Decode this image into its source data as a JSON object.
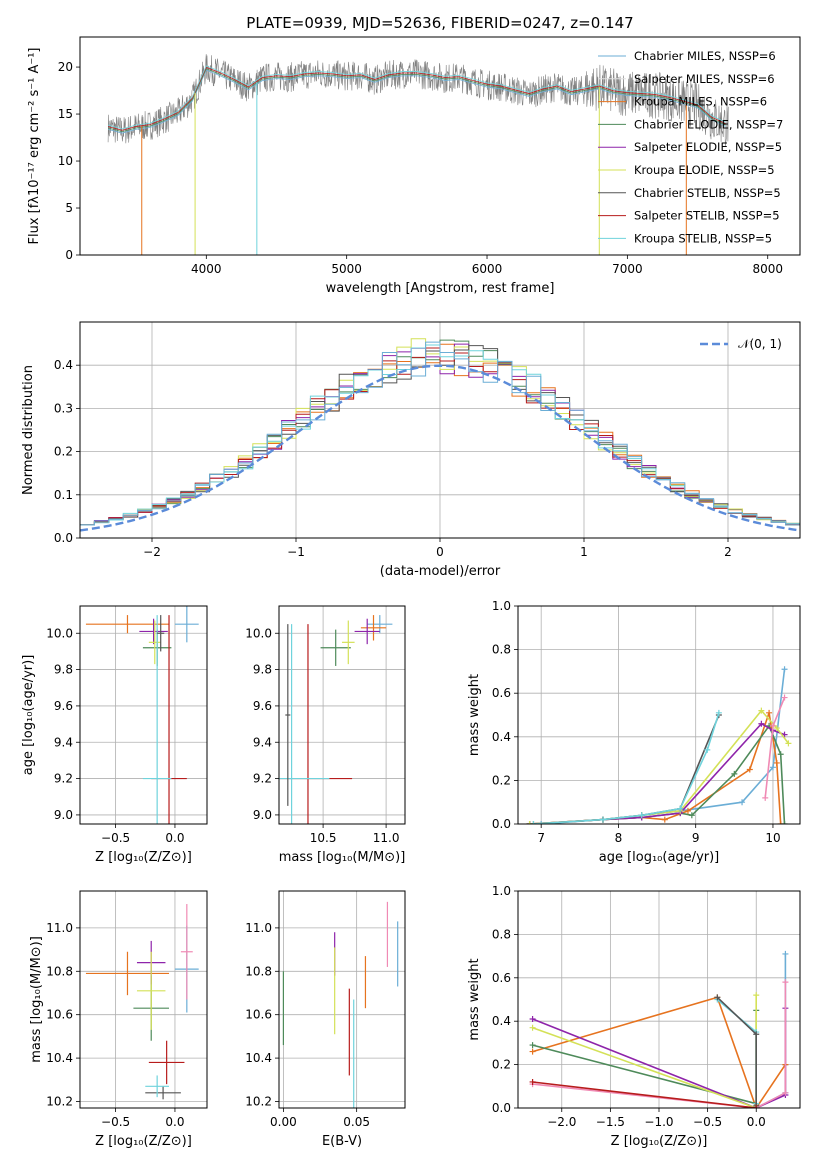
{
  "figure_title": "PLATE=0939, MJD=52636, FIBERID=0247, z=0.147",
  "series_colors": [
    "#6baed6",
    "#e0e0e0",
    "#e6731f",
    "#4e8a5a",
    "#8e24aa",
    "#d4e157",
    "#555555",
    "#b71c1c",
    "#6fd3dc"
  ],
  "chart_data": [
    {
      "type": "line",
      "xlabel": "wavelength [Angstrom, rest frame]",
      "ylabel": "Flux [fλ10⁻¹⁷ erg cm⁻² s⁻¹ A⁻¹]",
      "xlim": [
        3100,
        8230
      ],
      "ylim": [
        0,
        23.2
      ],
      "xticks": [
        "4000",
        "5000",
        "6000",
        "7000",
        "8000"
      ],
      "yticks": [
        "0",
        "5",
        "10",
        "15",
        "20"
      ],
      "legend_position": "right",
      "series": [
        {
          "name": "Chabrier MILES, NSSP=6"
        },
        {
          "name": "Salpeter MILES, NSSP=6"
        },
        {
          "name": "Kroupa MILES, NSSP=6"
        },
        {
          "name": "Chabrier ELODIE, NSSP=7"
        },
        {
          "name": "Salpeter ELODIE, NSSP=5"
        },
        {
          "name": "Kroupa ELODIE, NSSP=5"
        },
        {
          "name": "Chabrier STELIB, NSSP=5"
        },
        {
          "name": "Salpeter STELIB, NSSP=5"
        },
        {
          "name": "Kroupa STELIB, NSSP=5"
        }
      ],
      "model_spectrum": {
        "x": [
          3300,
          3400,
          3500,
          3600,
          3700,
          3800,
          3900,
          4000,
          4100,
          4200,
          4300,
          4400,
          4500,
          4600,
          4700,
          4800,
          4900,
          5000,
          5100,
          5200,
          5300,
          5400,
          5500,
          5600,
          5700,
          5800,
          5900,
          6000,
          6100,
          6200,
          6300,
          6400,
          6500,
          6600,
          6700,
          6800,
          6900,
          7000,
          7100,
          7200,
          7300,
          7400,
          7500,
          7600,
          7700
        ],
        "y": [
          13.6,
          13.2,
          13.6,
          13.8,
          14.4,
          15.1,
          16.6,
          19.9,
          19.3,
          18.6,
          17.8,
          18.8,
          19.0,
          18.9,
          19.2,
          19.3,
          19.2,
          19.0,
          19.1,
          18.6,
          19.1,
          19.3,
          19.3,
          19.1,
          18.8,
          18.9,
          18.5,
          18.1,
          17.9,
          17.5,
          17.1,
          17.6,
          17.9,
          17.3,
          17.6,
          17.9,
          17.4,
          17.2,
          17.1,
          17.0,
          16.7,
          16.3,
          15.9,
          14.6,
          13.9
        ]
      },
      "observed_spectrum_color": "#808080"
    },
    {
      "type": "line",
      "xlabel": "(data-model)/error",
      "ylabel": "Normed distribution",
      "xlim": [
        -2.5,
        2.5
      ],
      "ylim": [
        0,
        0.5
      ],
      "xticks": [
        "−2",
        "−1",
        "0",
        "1",
        "2"
      ],
      "yticks": [
        "0.0",
        "0.1",
        "0.2",
        "0.3",
        "0.4"
      ],
      "legend": [
        "𝒩(0, 1)"
      ],
      "legend_position": "top-right",
      "reference_curve": "normal(0,1)"
    },
    {
      "type": "scatter",
      "xlabel": "Z [log₁₀(Z/Z⊙)]",
      "ylabel": "age  [log₁₀(age/yr)]",
      "xlim": [
        -0.8,
        0.27
      ],
      "ylim": [
        8.95,
        10.15
      ],
      "xticks": [
        "−0.5",
        "0.0"
      ],
      "yticks": [
        "9.0",
        "9.2",
        "9.4",
        "9.6",
        "9.8",
        "10.0"
      ],
      "points": [
        {
          "s": 0,
          "x": 0.1,
          "y": 10.05,
          "xerr": 0.1,
          "yerr": 0.1
        },
        {
          "s": 2,
          "x": -0.4,
          "y": 10.05,
          "xerr": 0.35,
          "yerr": 0.05
        },
        {
          "s": 3,
          "x": -0.15,
          "y": 9.92,
          "xerr": 0.12,
          "yerr": 0.1
        },
        {
          "s": 4,
          "x": -0.18,
          "y": 10.01,
          "xerr": 0.12,
          "yerr": 0.07
        },
        {
          "s": 5,
          "x": -0.17,
          "y": 9.95,
          "xerr": 0.05,
          "yerr": 0.12
        },
        {
          "s": 7,
          "x": -0.05,
          "y": 9.2,
          "xerr": 0.15,
          "yerr": 0.9
        },
        {
          "s": 8,
          "x": -0.15,
          "y": 9.2,
          "xerr": 0.12,
          "yerr": 0.9
        },
        {
          "s": 6,
          "x": -0.12,
          "y": 10.0,
          "xerr": 0.03,
          "yerr": 0.1
        }
      ]
    },
    {
      "type": "scatter",
      "xlabel": "mass [log₁₀(M/M⊙)]",
      "ylabel": "",
      "xlim": [
        10.15,
        11.15
      ],
      "ylim": [
        8.95,
        10.15
      ],
      "xticks": [
        "10.5",
        "11.0"
      ],
      "yticks": [
        "9.0",
        "9.2",
        "9.4",
        "9.6",
        "9.8",
        "10.0"
      ],
      "points": [
        {
          "s": 0,
          "x": 10.95,
          "y": 10.05,
          "xerr": 0.1,
          "yerr": 0.05
        },
        {
          "s": 2,
          "x": 10.9,
          "y": 10.03,
          "xerr": 0.1,
          "yerr": 0.07
        },
        {
          "s": 3,
          "x": 10.6,
          "y": 9.92,
          "xerr": 0.12,
          "yerr": 0.1
        },
        {
          "s": 4,
          "x": 10.85,
          "y": 10.01,
          "xerr": 0.1,
          "yerr": 0.07
        },
        {
          "s": 5,
          "x": 10.7,
          "y": 9.95,
          "xerr": 0.05,
          "yerr": 0.12
        },
        {
          "s": 7,
          "x": 10.38,
          "y": 9.2,
          "xerr": 0.35,
          "yerr": 0.85
        },
        {
          "s": 8,
          "x": 10.25,
          "y": 9.2,
          "xerr": 0.3,
          "yerr": 0.85
        },
        {
          "s": 6,
          "x": 10.22,
          "y": 9.55,
          "xerr": 0.02,
          "yerr": 0.5
        }
      ]
    },
    {
      "type": "line",
      "xlabel": "age  [log₁₀(age/yr)]",
      "ylabel": "mass weight",
      "xlim": [
        6.7,
        10.35
      ],
      "ylim": [
        0,
        1.0
      ],
      "xticks": [
        "7",
        "8",
        "9",
        "10"
      ],
      "yticks": [
        "0.0",
        "0.2",
        "0.4",
        "0.6",
        "0.8",
        "1.0"
      ],
      "series": [
        {
          "s": 0,
          "x": [
            6.85,
            7.0,
            7.8,
            8.3,
            8.8,
            9.6,
            10.0,
            10.15
          ],
          "y": [
            0.0,
            0.0,
            0.02,
            0.04,
            0.06,
            0.1,
            0.26,
            0.71
          ]
        },
        {
          "s": 2,
          "x": [
            6.85,
            7.8,
            8.3,
            8.6,
            8.9,
            9.7,
            9.95,
            10.05,
            10.1
          ],
          "y": [
            0.0,
            0.02,
            0.03,
            0.02,
            0.06,
            0.25,
            0.51,
            0.28,
            0.0
          ]
        },
        {
          "s": 3,
          "x": [
            6.85,
            7.8,
            8.3,
            8.8,
            8.95,
            9.5,
            9.95,
            10.1,
            10.15
          ],
          "y": [
            0.0,
            0.02,
            0.03,
            0.05,
            0.04,
            0.23,
            0.45,
            0.32,
            0.0
          ]
        },
        {
          "s": 4,
          "x": [
            6.85,
            7.8,
            8.3,
            8.8,
            9.85,
            10.0,
            10.15
          ],
          "y": [
            0.0,
            0.02,
            0.03,
            0.05,
            0.46,
            0.43,
            0.41
          ]
        },
        {
          "s": 5,
          "x": [
            6.85,
            7.8,
            8.3,
            8.8,
            9.85,
            10.05,
            10.2
          ],
          "y": [
            0.0,
            0.02,
            0.04,
            0.06,
            0.52,
            0.44,
            0.37
          ]
        },
        {
          "s": 6,
          "x": [
            6.9,
            7.8,
            8.3,
            8.8,
            9.3
          ],
          "y": [
            0.0,
            0.02,
            0.04,
            0.07,
            0.5
          ]
        },
        {
          "s": 8,
          "x": [
            6.9,
            7.8,
            8.3,
            8.8,
            9.15,
            9.3
          ],
          "y": [
            0.0,
            0.02,
            0.04,
            0.07,
            0.34,
            0.51
          ]
        },
        {
          "s": 1,
          "x": [
            9.9,
            10.0,
            10.15
          ],
          "y": [
            0.12,
            0.45,
            0.58
          ]
        }
      ]
    },
    {
      "type": "scatter",
      "xlabel": "Z [log₁₀(Z/Z⊙)]",
      "ylabel": "mass [log₁₀(M/M⊙)]",
      "xlim": [
        -0.8,
        0.27
      ],
      "ylim": [
        10.17,
        11.17
      ],
      "xticks": [
        "−0.5",
        "0.0"
      ],
      "yticks": [
        "10.2",
        "10.4",
        "10.6",
        "10.8",
        "11.0"
      ],
      "points": [
        {
          "s": 0,
          "x": 0.1,
          "y": 10.81,
          "xerr": 0.1,
          "yerr": 0.2
        },
        {
          "s": 1,
          "x": 0.1,
          "y": 10.89,
          "xerr": 0.05,
          "yerr": 0.22
        },
        {
          "s": 2,
          "x": -0.4,
          "y": 10.79,
          "xerr": 0.35,
          "yerr": 0.1
        },
        {
          "s": 3,
          "x": -0.2,
          "y": 10.63,
          "xerr": 0.15,
          "yerr": 0.15
        },
        {
          "s": 4,
          "x": -0.2,
          "y": 10.84,
          "xerr": 0.12,
          "yerr": 0.1
        },
        {
          "s": 5,
          "x": -0.2,
          "y": 10.71,
          "xerr": 0.12,
          "yerr": 0.18
        },
        {
          "s": 6,
          "x": -0.1,
          "y": 10.24,
          "xerr": 0.15,
          "yerr": 0.03
        },
        {
          "s": 7,
          "x": -0.07,
          "y": 10.38,
          "xerr": 0.15,
          "yerr": 0.1
        },
        {
          "s": 8,
          "x": -0.15,
          "y": 10.27,
          "xerr": 0.1,
          "yerr": 0.05
        }
      ]
    },
    {
      "type": "scatter",
      "xlabel": "E(B-V)",
      "ylabel": "",
      "xlim": [
        -0.003,
        0.083
      ],
      "ylim": [
        10.17,
        11.17
      ],
      "xticks": [
        "0.00",
        "0.05"
      ],
      "yticks": [
        "10.2",
        "10.4",
        "10.6",
        "10.8",
        "11.0"
      ],
      "points": [
        {
          "s": 0,
          "x": 0.078,
          "y": 10.88,
          "xerr": 0,
          "yerr": 0.15
        },
        {
          "s": 1,
          "x": 0.071,
          "y": 10.97,
          "xerr": 0,
          "yerr": 0.15
        },
        {
          "s": 2,
          "x": 0.056,
          "y": 10.75,
          "xerr": 0,
          "yerr": 0.12
        },
        {
          "s": 3,
          "x": 0.0,
          "y": 10.63,
          "xerr": 0,
          "yerr": 0.17
        },
        {
          "s": 4,
          "x": 0.035,
          "y": 10.88,
          "xerr": 0,
          "yerr": 0.1
        },
        {
          "s": 5,
          "x": 0.035,
          "y": 10.71,
          "xerr": 0,
          "yerr": 0.2
        },
        {
          "s": 7,
          "x": 0.045,
          "y": 10.52,
          "xerr": 0,
          "yerr": 0.2
        },
        {
          "s": 8,
          "x": 0.048,
          "y": 10.42,
          "xerr": 0,
          "yerr": 0.25
        }
      ]
    },
    {
      "type": "line",
      "xlabel": "Z [log₁₀(Z/Z⊙)]",
      "ylabel": "mass weight",
      "xlim": [
        -2.45,
        0.45
      ],
      "ylim": [
        0,
        1.0
      ],
      "xticks": [
        "−2.0",
        "−1.5",
        "−1.0",
        "−0.5",
        "0.0"
      ],
      "yticks": [
        "0.0",
        "0.2",
        "0.4",
        "0.6",
        "0.8",
        "1.0"
      ],
      "series": [
        {
          "s": 0,
          "x": [
            0.0,
            0.3,
            0.3,
            0.3
          ],
          "y": [
            0.0,
            0.07,
            0.2,
            0.71
          ]
        },
        {
          "s": 2,
          "x": [
            -2.3,
            -0.4,
            0.0,
            0.3
          ],
          "y": [
            0.26,
            0.51,
            0.0,
            0.2
          ]
        },
        {
          "s": 3,
          "x": [
            -2.3,
            0.0,
            0.0
          ],
          "y": [
            0.29,
            0.02,
            0.45
          ]
        },
        {
          "s": 4,
          "x": [
            -2.3,
            0.0,
            0.3,
            0.3
          ],
          "y": [
            0.41,
            0.0,
            0.06,
            0.46
          ]
        },
        {
          "s": 5,
          "x": [
            -2.3,
            0.0,
            0.0
          ],
          "y": [
            0.37,
            0.0,
            0.52
          ]
        },
        {
          "s": 1,
          "x": [
            -2.3,
            0.0,
            0.3,
            0.3
          ],
          "y": [
            0.11,
            0.0,
            0.07,
            0.58
          ]
        },
        {
          "s": 8,
          "x": [
            -0.4,
            0.0,
            0.0,
            0.0
          ],
          "y": [
            0.5,
            0.35,
            0.02,
            0.0
          ]
        },
        {
          "s": 6,
          "x": [
            -0.4,
            0.0,
            0.0
          ],
          "y": [
            0.51,
            0.34,
            0.01
          ]
        },
        {
          "s": 7,
          "x": [
            -2.3,
            0.0
          ],
          "y": [
            0.12,
            0.0
          ]
        }
      ]
    }
  ]
}
